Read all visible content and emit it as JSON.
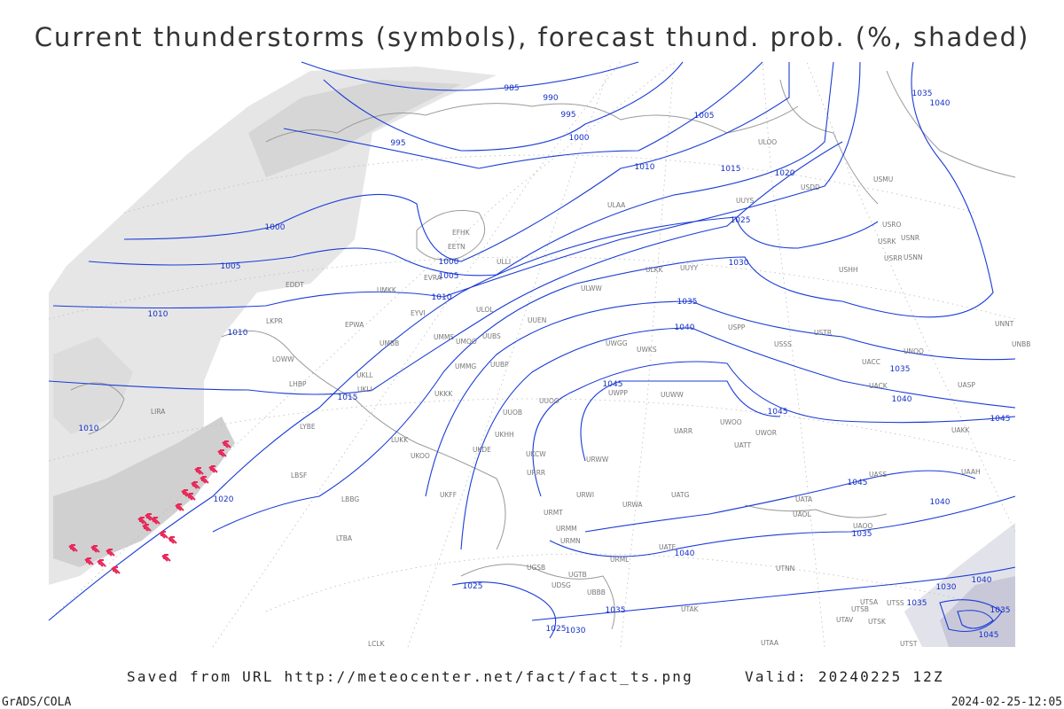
{
  "header": {
    "title": "Current thunderstorms (symbols), forecast thund. prob. (%, shaded)"
  },
  "map": {
    "isobar_labels": [
      985,
      990,
      995,
      995,
      1000,
      1005,
      1010,
      1015,
      1020,
      1025,
      1030,
      1035,
      1040,
      1035,
      1040,
      1035,
      1040,
      1045,
      1045,
      1045,
      1045,
      1040,
      1035,
      1040,
      1000,
      1005,
      1010,
      1010,
      1010,
      1000,
      1005,
      1010,
      1015,
      1020,
      1025,
      1025,
      1030,
      1035,
      1040,
      1030,
      1035,
      1035,
      1045
    ],
    "stations": [
      "ULOO",
      "USDD",
      "ULAA",
      "UUYS",
      "USMU",
      "UUYY",
      "ULKK",
      "USHH",
      "USRO",
      "USRK",
      "USNR",
      "USRR",
      "USNN",
      "ULOL",
      "UUEN",
      "ULWW",
      "USPP",
      "USSS",
      "USTR",
      "UNOO",
      "UACC",
      "UACK",
      "UASP",
      "UNNT",
      "UNBB",
      "UUWW",
      "UWKS",
      "UWGG",
      "UWPP",
      "UUOO",
      "URRR",
      "UUOB",
      "URWI",
      "URWA",
      "UATG",
      "URMT",
      "URMM",
      "URMN",
      "URML",
      "UATE",
      "UTNN",
      "UAOL",
      "UATA",
      "UAOO",
      "UASS",
      "UAAH",
      "UAKK",
      "UATT",
      "UARR",
      "UWOO",
      "UWOR",
      "URWW",
      "UKCW",
      "UKDE",
      "UKOO",
      "UKFF",
      "UKKK",
      "UKLI",
      "UKLL",
      "UMMG",
      "UUBP",
      "UMOO",
      "UMMS",
      "UUBS",
      "EPWA",
      "UMBB",
      "EYVI",
      "UMKK",
      "EVRA",
      "ULLI",
      "EETN",
      "EFHK",
      "EDDT",
      "LKPR",
      "LOWW",
      "LHBP",
      "LYBE",
      "LBSF",
      "LBBG",
      "LIRA",
      "LUKK",
      "UKHH",
      "LTBA",
      "UGSB",
      "UDSG",
      "UBBB",
      "UGTB",
      "UTAK",
      "UTSA",
      "UTSB",
      "UTSS",
      "UTAV",
      "UTSK",
      "UTAA",
      "UTST",
      "LCLK"
    ]
  },
  "footer": {
    "saved": "Saved from URL http://meteocenter.net/fact/fact_ts.png",
    "valid": "Valid: 20240225 12Z",
    "software": "GrADS/COLA",
    "timestamp": "2024-02-25-12:05"
  }
}
